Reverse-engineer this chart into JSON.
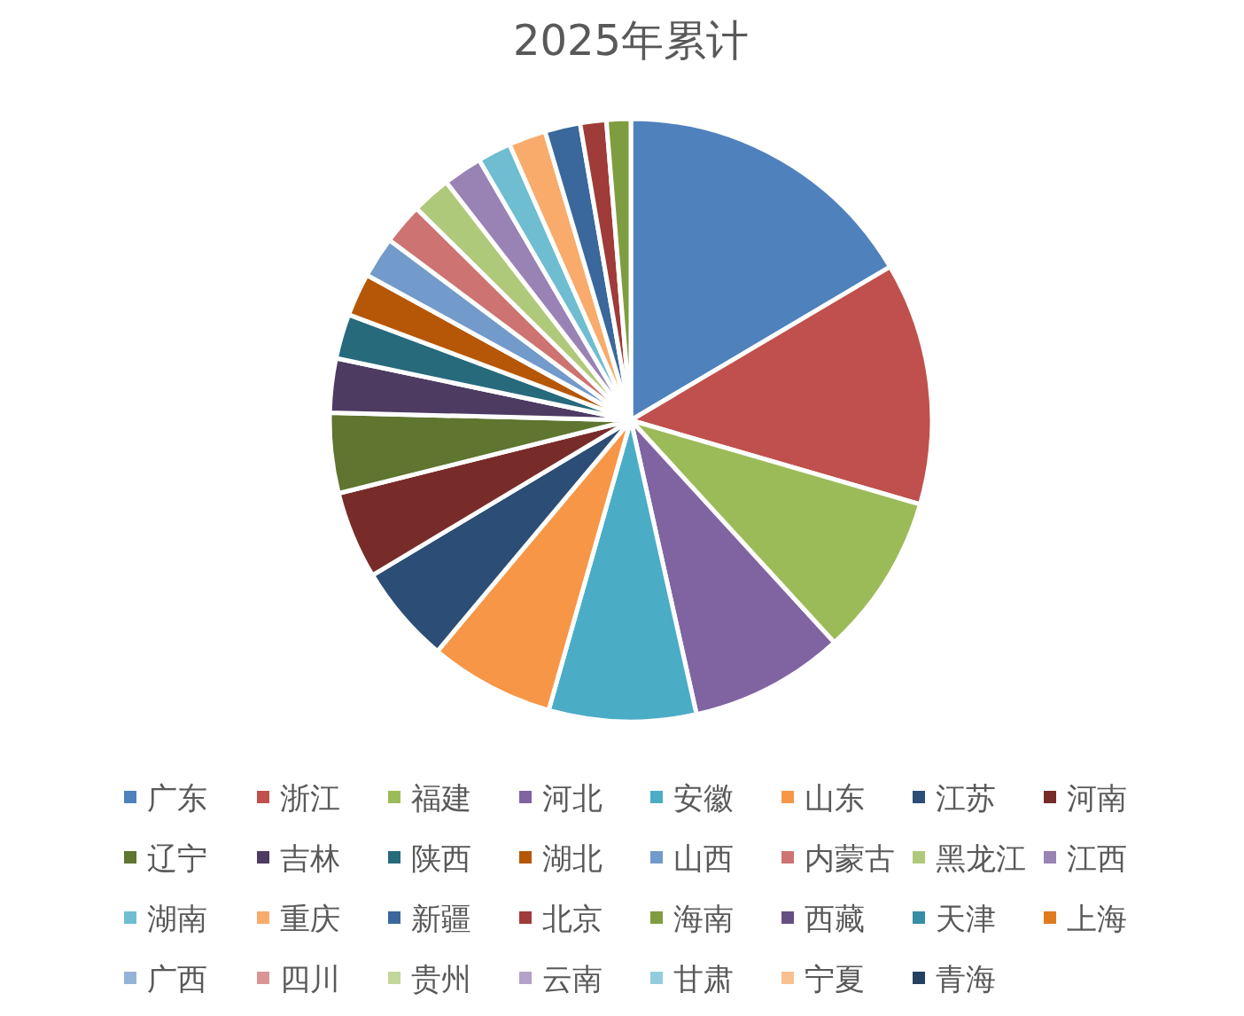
{
  "chart_data": {
    "type": "pie",
    "title": "2025年累计",
    "legend": "bottom",
    "categories": [
      "广东",
      "浙江",
      "福建",
      "河北",
      "安徽",
      "山东",
      "江苏",
      "河南",
      "辽宁",
      "吉林",
      "陕西",
      "湖北",
      "山西",
      "内蒙古",
      "黑龙江",
      "江西",
      "湖南",
      "重庆",
      "新疆",
      "北京",
      "海南",
      "西藏",
      "天津",
      "上海",
      "广西",
      "四川",
      "贵州",
      "云南",
      "甘肃",
      "宁夏",
      "青海"
    ],
    "values": [
      16.5,
      13.0,
      8.7,
      8.3,
      7.9,
      6.7,
      5.3,
      4.7,
      4.3,
      2.9,
      2.4,
      2.3,
      2.2,
      2.2,
      2.1,
      2.1,
      1.8,
      2.0,
      1.9,
      1.4,
      1.3,
      0,
      0,
      0,
      0,
      0,
      0,
      0,
      0,
      0,
      0
    ],
    "colors": [
      "#4f81bd",
      "#c0504d",
      "#9bbb59",
      "#8064a2",
      "#4bacc6",
      "#f79646",
      "#2c4d75",
      "#772c2a",
      "#5f7530",
      "#4d3b62",
      "#276a7c",
      "#b65708",
      "#729aca",
      "#cd7371",
      "#afc97a",
      "#9983b5",
      "#6fbdd1",
      "#f9ab6b",
      "#3a679c",
      "#9f3b38",
      "#7e9d40",
      "#664f83",
      "#358ea6",
      "#e07b1f",
      "#95b3d7",
      "#d99694",
      "#c3d69b",
      "#b3a2c7",
      "#93cddd",
      "#fac090",
      "#254061"
    ]
  }
}
